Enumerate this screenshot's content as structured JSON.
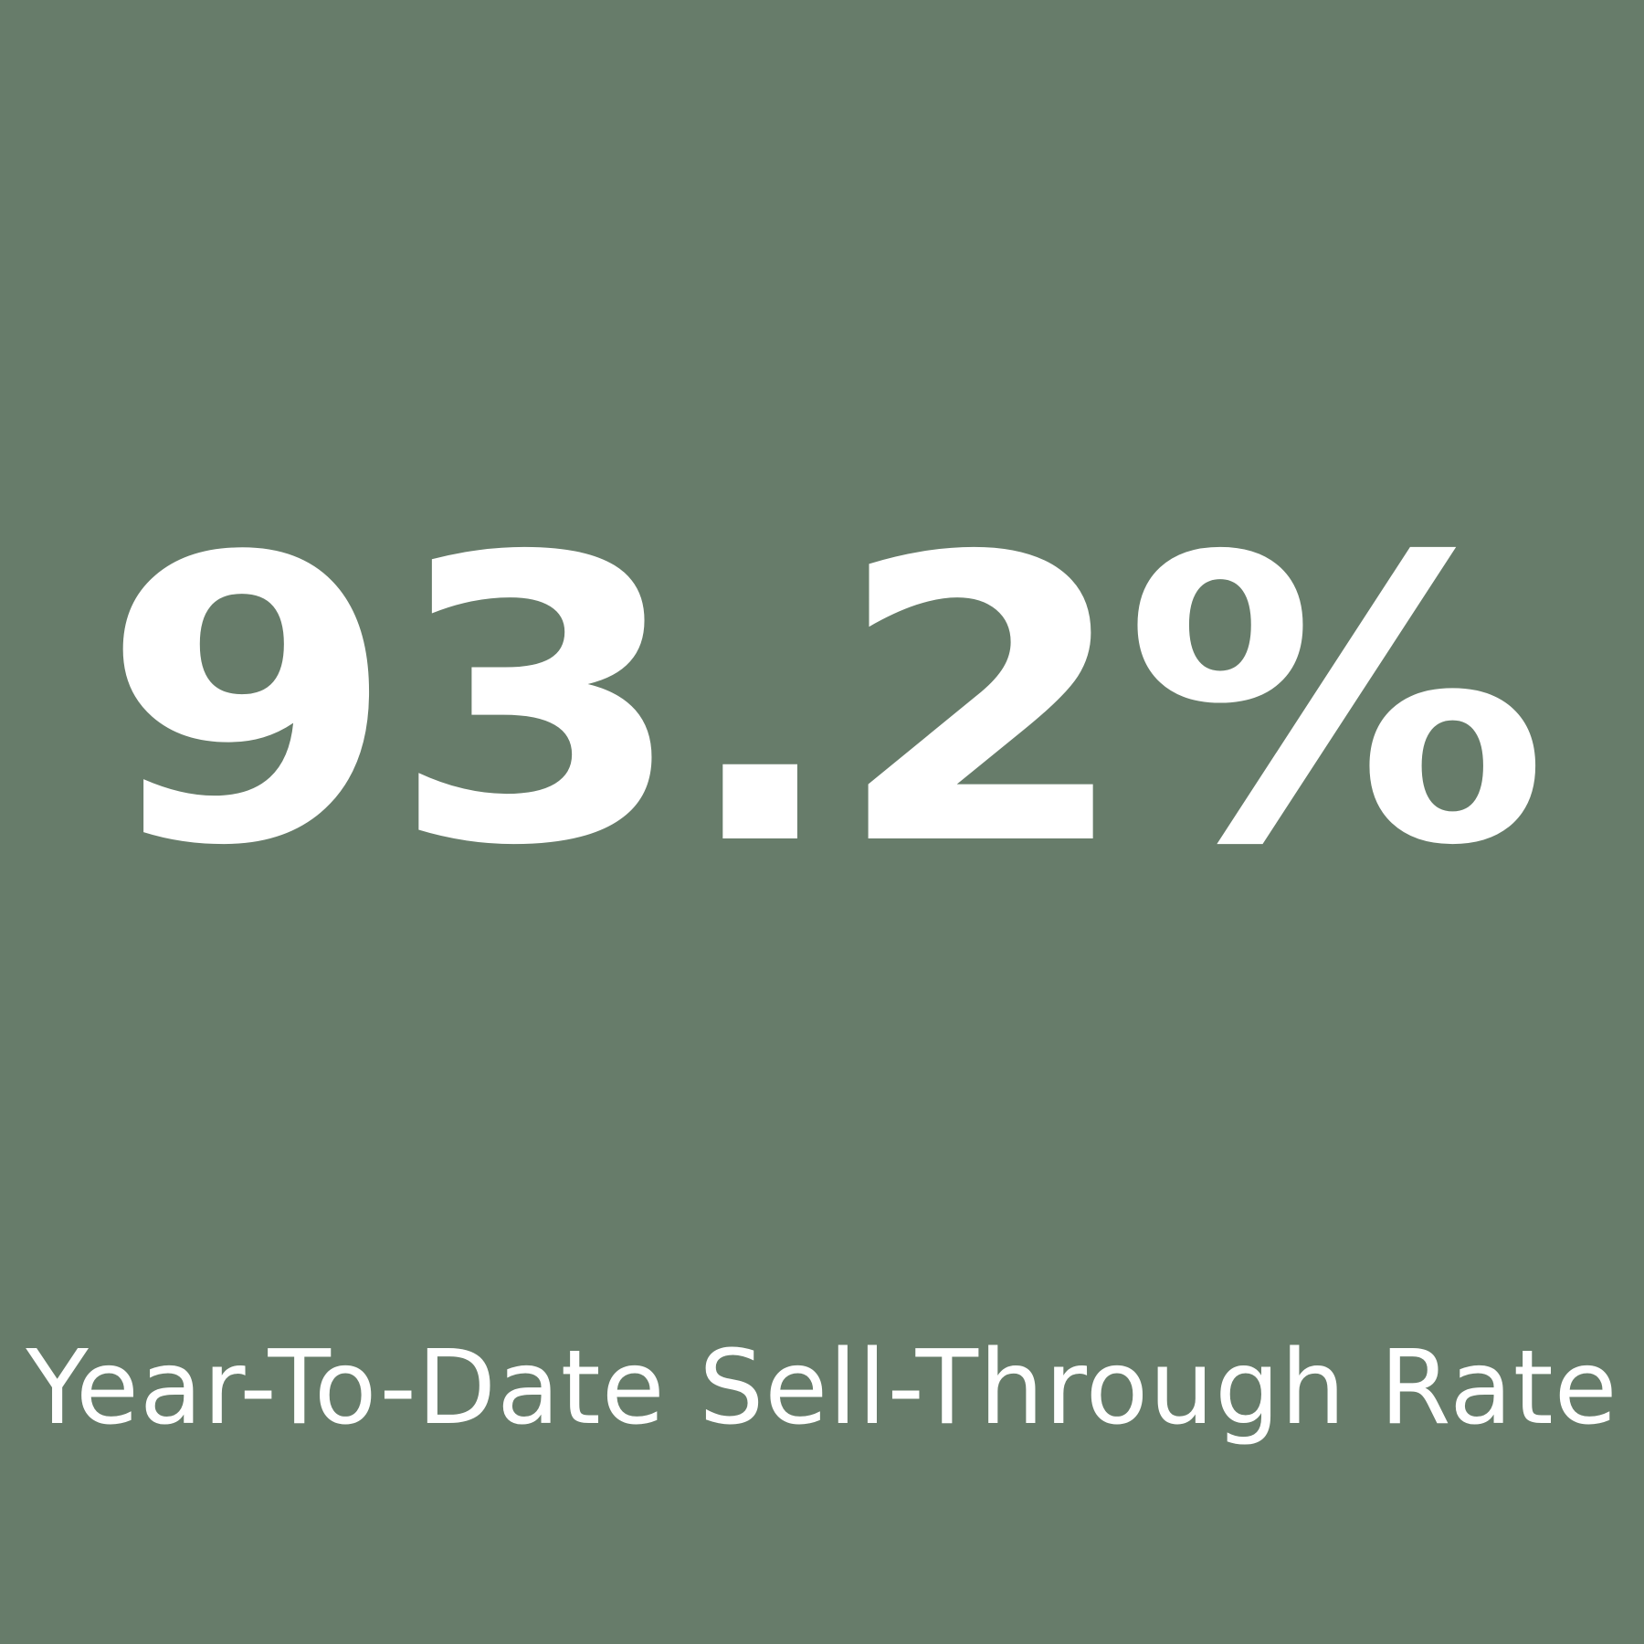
{
  "stat": {
    "value": "93.2%",
    "percent": 93.2
  },
  "caption": "Year-To-Date Sell-Through Rate",
  "colors": {
    "background": "#677c6a",
    "text": "#ffffff"
  }
}
